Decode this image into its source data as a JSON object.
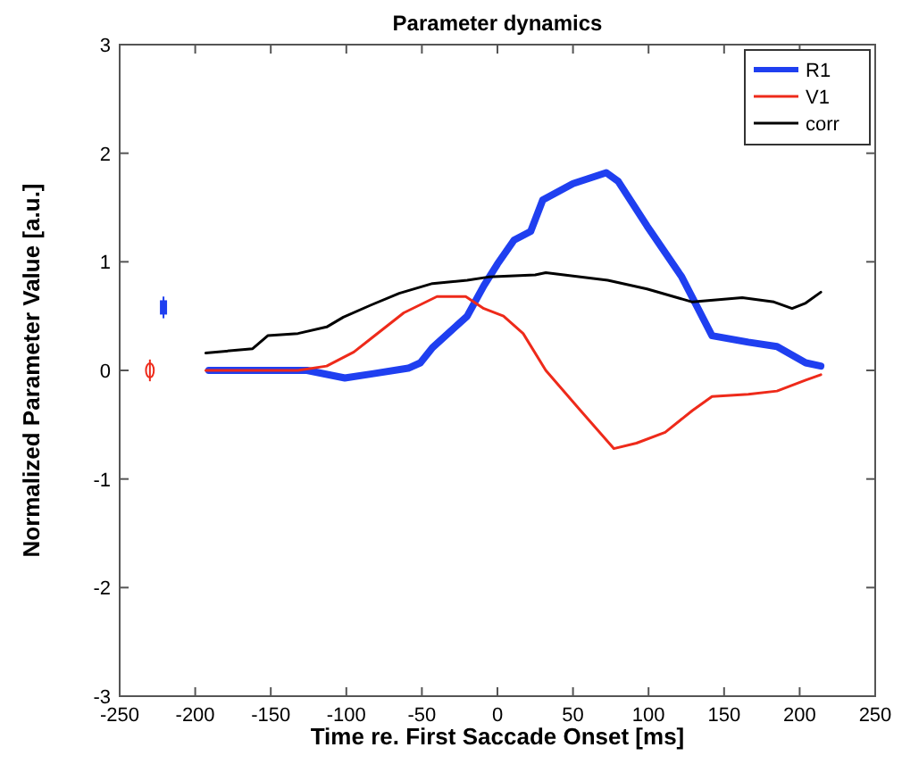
{
  "chart_data": {
    "type": "line",
    "title": "Parameter dynamics",
    "xlabel": "Time re. First Saccade Onset [ms]",
    "ylabel": "Normalized Parameter Value [a.u.]",
    "xlim": [
      -250,
      250
    ],
    "xticks": [
      -250,
      -200,
      -150,
      -100,
      -50,
      0,
      50,
      100,
      150,
      200,
      250
    ],
    "ylim": [
      -3,
      3
    ],
    "yticks": [
      -3,
      -2,
      -1,
      0,
      1,
      2,
      3
    ],
    "grid": false,
    "legend": "top right",
    "series": [
      {
        "name": "R1",
        "color": "#1f3ff0",
        "x": [
          -191,
          -155,
          -126,
          -101,
          -82,
          -59,
          -51,
          -43,
          -20,
          -9,
          0,
          11,
          22,
          30,
          50,
          72,
          80,
          99,
          122,
          142,
          166,
          185,
          204,
          214
        ],
        "values": [
          0,
          0,
          0,
          -0.07,
          -0.03,
          0.02,
          0.07,
          0.21,
          0.5,
          0.78,
          0.98,
          1.2,
          1.28,
          1.57,
          1.72,
          1.82,
          1.74,
          1.33,
          0.86,
          0.32,
          0.26,
          0.22,
          0.07,
          0.04
        ]
      },
      {
        "name": "V1",
        "color": "#ee2a1a",
        "x": [
          -193,
          -132,
          -113,
          -95,
          -84,
          -62,
          -40,
          -21,
          -9,
          4,
          17,
          32,
          55,
          77,
          92,
          111,
          129,
          142,
          166,
          185,
          204,
          214
        ],
        "values": [
          0,
          0,
          0.04,
          0.17,
          0.29,
          0.53,
          0.68,
          0.68,
          0.57,
          0.5,
          0.34,
          0,
          -0.37,
          -0.72,
          -0.67,
          -0.57,
          -0.37,
          -0.24,
          -0.22,
          -0.19,
          -0.09,
          -0.04
        ]
      },
      {
        "name": "corr",
        "color": "#000000",
        "x": [
          -193,
          -162,
          -152,
          -132,
          -113,
          -102,
          -84,
          -65,
          -43,
          -20,
          -6,
          25,
          32,
          73,
          99,
          129,
          162,
          183,
          195,
          204,
          214
        ],
        "values": [
          0.16,
          0.2,
          0.32,
          0.34,
          0.4,
          0.49,
          0.6,
          0.71,
          0.8,
          0.83,
          0.86,
          0.88,
          0.9,
          0.83,
          0.75,
          0.63,
          0.67,
          0.63,
          0.57,
          0.62,
          0.72
        ]
      },
      {
        "type": "scatter",
        "marker": "circle",
        "color": "#ee2a1a",
        "x": [
          -230
        ],
        "values": [
          0
        ],
        "errors": [
          0.1
        ]
      },
      {
        "type": "scatter",
        "marker": "square",
        "color": "#1f3ff0",
        "x": [
          -221
        ],
        "values": [
          0.58
        ],
        "errors": [
          0.1
        ]
      }
    ]
  }
}
